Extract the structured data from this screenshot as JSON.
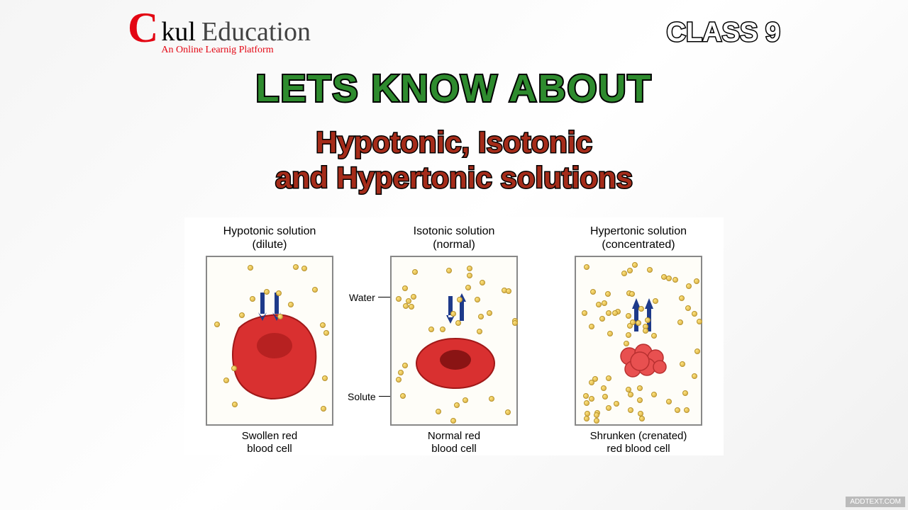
{
  "logo": {
    "letter": "C",
    "text1": "kul",
    "text2": "Education",
    "tagline": "An Online Learnig Platform"
  },
  "class_badge": "CLASS 9",
  "main_title": "LETS KNOW ABOUT",
  "subtitle_line1": "Hypotonic, Isotonic",
  "subtitle_line2": "and Hypertonic solutions",
  "watermark": "ADDTEXT.COM",
  "labels": {
    "water": "Water",
    "solute": "Solute"
  },
  "panels": [
    {
      "title_line1": "Hypotonic solution",
      "title_line2": "(dilute)",
      "caption_line1": "Swollen red",
      "caption_line2": "blood cell",
      "solute_density": "low",
      "cell_type": "swollen",
      "arrows": "in_both",
      "cell_color": "#d93030",
      "cell_shadow": "#a01818",
      "solute_count": 18
    },
    {
      "title_line1": "Isotonic solution",
      "title_line2": "(normal)",
      "caption_line1": "Normal red",
      "caption_line2": "blood cell",
      "solute_density": "medium",
      "cell_type": "normal",
      "arrows": "both_ways",
      "cell_color": "#d93030",
      "cell_shadow": "#a01818",
      "solute_count": 35
    },
    {
      "title_line1": "Hypertonic solution",
      "title_line2": "(concentrated)",
      "caption_line1": "Shrunken (crenated)",
      "caption_line2": "red blood cell",
      "solute_density": "high",
      "cell_type": "shrunken",
      "arrows": "out_both",
      "cell_color": "#e85050",
      "cell_shadow": "#b83030",
      "solute_count": 70
    }
  ],
  "colors": {
    "logo_red": "#e30613",
    "title_green": "#2e8b2e",
    "subtitle_red": "#a52c1a",
    "arrow_blue": "#1e3a8a",
    "solute_fill": "#d4a840",
    "box_border": "#888888"
  }
}
